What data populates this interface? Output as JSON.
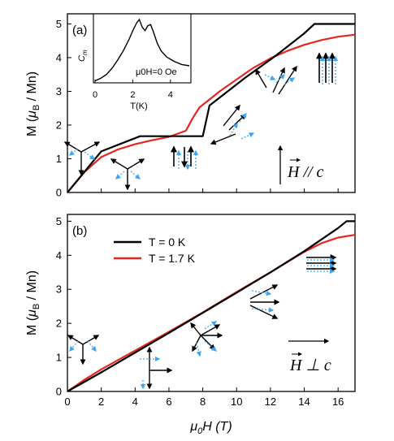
{
  "chart_data": [
    {
      "panel": "(a)",
      "type": "line",
      "ylabel_main": "M (",
      "ylabel_mu": "μ",
      "ylabel_sub": "B",
      "ylabel_tail": " / Mn)",
      "xlim": [
        0,
        17
      ],
      "ylim": [
        0,
        5.3
      ],
      "yticks": [
        0,
        1,
        2,
        3,
        4,
        5
      ],
      "field_label": "H // c",
      "series": [
        {
          "name": "T = 0 K",
          "color": "#000000",
          "x": [
            0,
            2.0,
            4.3,
            8.0,
            8.4,
            10.5,
            12.3,
            14.0,
            14.6,
            17
          ],
          "y": [
            0,
            1.22,
            1.67,
            1.67,
            2.58,
            3.4,
            4.05,
            4.72,
            5.0,
            5.0
          ]
        },
        {
          "name": "T = 1.7 K",
          "color": "#e8261f",
          "x": [
            0,
            1,
            2,
            3,
            4,
            5,
            6,
            7,
            7.4,
            7.8,
            8.3,
            9,
            10,
            11,
            12,
            13,
            14,
            15,
            16,
            17
          ],
          "y": [
            0,
            0.6,
            1.05,
            1.28,
            1.43,
            1.55,
            1.65,
            1.83,
            2.2,
            2.52,
            2.72,
            3.0,
            3.35,
            3.7,
            3.98,
            4.2,
            4.38,
            4.52,
            4.62,
            4.68
          ]
        }
      ],
      "inset": {
        "ylabel": "C",
        "ylabel_sub": "m",
        "xlabel": "T(K)",
        "xticks": [
          0,
          2,
          4
        ],
        "xlim": [
          0,
          5
        ],
        "annotation": "μ0H=0 Oe",
        "x": [
          0,
          0.3,
          0.6,
          0.9,
          1.2,
          1.5,
          1.8,
          2.0,
          2.2,
          2.35,
          2.5,
          2.65,
          2.8,
          2.95,
          3.1,
          3.3,
          3.5,
          3.8,
          4.2,
          4.6,
          5.0
        ],
        "y": [
          0.02,
          0.06,
          0.12,
          0.22,
          0.35,
          0.5,
          0.68,
          0.82,
          0.94,
          1.0,
          0.88,
          0.82,
          0.9,
          0.92,
          0.8,
          0.62,
          0.5,
          0.4,
          0.33,
          0.28,
          0.26
        ]
      }
    },
    {
      "panel": "(b)",
      "type": "line",
      "ylabel_main": "M (",
      "ylabel_mu": "μ",
      "ylabel_sub": "B",
      "ylabel_tail": " / Mn)",
      "xlabel_mu": "μ",
      "xlabel_sub": "0",
      "xlabel_tail": "H (T)",
      "xlim": [
        0,
        17
      ],
      "ylim": [
        0,
        5.2
      ],
      "xticks": [
        0,
        2,
        4,
        6,
        8,
        10,
        12,
        14,
        16
      ],
      "yticks": [
        0,
        1,
        2,
        3,
        4,
        5
      ],
      "field_label": "H ⊥ c",
      "legend": [
        "T = 0 K",
        "T = 1.7 K"
      ],
      "series": [
        {
          "name": "T = 0 K",
          "color": "#000000",
          "x": [
            0,
            2,
            4,
            6,
            8,
            10,
            12,
            14,
            16,
            16.5,
            17
          ],
          "y": [
            0,
            0.56,
            1.14,
            1.72,
            2.31,
            2.9,
            3.5,
            4.12,
            4.8,
            5.0,
            5.0
          ]
        },
        {
          "name": "T = 1.7 K",
          "color": "#e8261f",
          "x": [
            0,
            1,
            2,
            4,
            6,
            8,
            10,
            12,
            13,
            14,
            15,
            16,
            17
          ],
          "y": [
            0,
            0.34,
            0.65,
            1.2,
            1.75,
            2.32,
            2.92,
            3.5,
            3.8,
            4.1,
            4.35,
            4.52,
            4.6
          ]
        }
      ]
    }
  ]
}
